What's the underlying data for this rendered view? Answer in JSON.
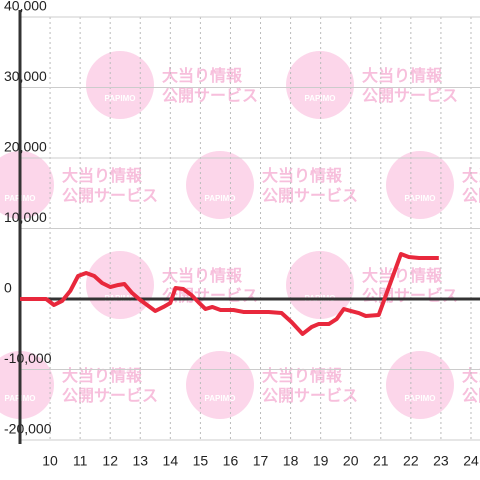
{
  "chart_data": {
    "type": "line",
    "x": [
      9,
      9.87,
      10.13,
      10.4,
      10.67,
      10.93,
      11.2,
      11.47,
      11.73,
      12,
      12.27,
      12.47,
      12.73,
      13,
      13.5,
      13.77,
      14,
      14.17,
      14.43,
      14.7,
      14.93,
      15.17,
      15.4,
      15.67,
      16.1,
      16.43,
      17.27,
      17.7,
      18.03,
      18.4,
      18.7,
      18.93,
      19.27,
      19.53,
      19.77,
      20,
      20.27,
      20.5,
      20.93,
      21.67,
      21.93,
      22.27,
      22.93
    ],
    "series": [
      {
        "color": "#e8283c",
        "values": [
          0,
          0,
          -850,
          -280,
          1130,
          3260,
          3690,
          3260,
          2270,
          1700,
          1990,
          2130,
          850,
          -140,
          -1700,
          -1130,
          -570,
          1560,
          1420,
          570,
          -430,
          -1420,
          -1130,
          -1560,
          -1560,
          -1840,
          -1840,
          -1990,
          -3260,
          -4960,
          -3970,
          -3550,
          -3550,
          -2840,
          -1420,
          -1700,
          -1990,
          -2410,
          -2270,
          6380,
          5960,
          5820,
          5820
        ]
      }
    ],
    "xlim": [
      9,
      24.3
    ],
    "xticks": [
      10,
      11,
      12,
      13,
      14,
      15,
      16,
      17,
      18,
      19,
      20,
      21,
      22,
      23,
      24
    ],
    "ylim": [
      -20000,
      40000
    ],
    "yticks": [
      {
        "value": -20000,
        "label": "-20,000"
      },
      {
        "value": -10000,
        "label": "-10,000"
      },
      0,
      {
        "value": 10000,
        "label": "10,000"
      },
      {
        "value": 20000,
        "label": "20,000"
      },
      {
        "value": 30000,
        "label": "30,000"
      },
      {
        "value": 40000,
        "label": "40,000"
      }
    ],
    "grid": true
  },
  "watermark": {
    "brand": "PAPIMO",
    "line1": "大当り情報",
    "line2": "公開サービス"
  }
}
